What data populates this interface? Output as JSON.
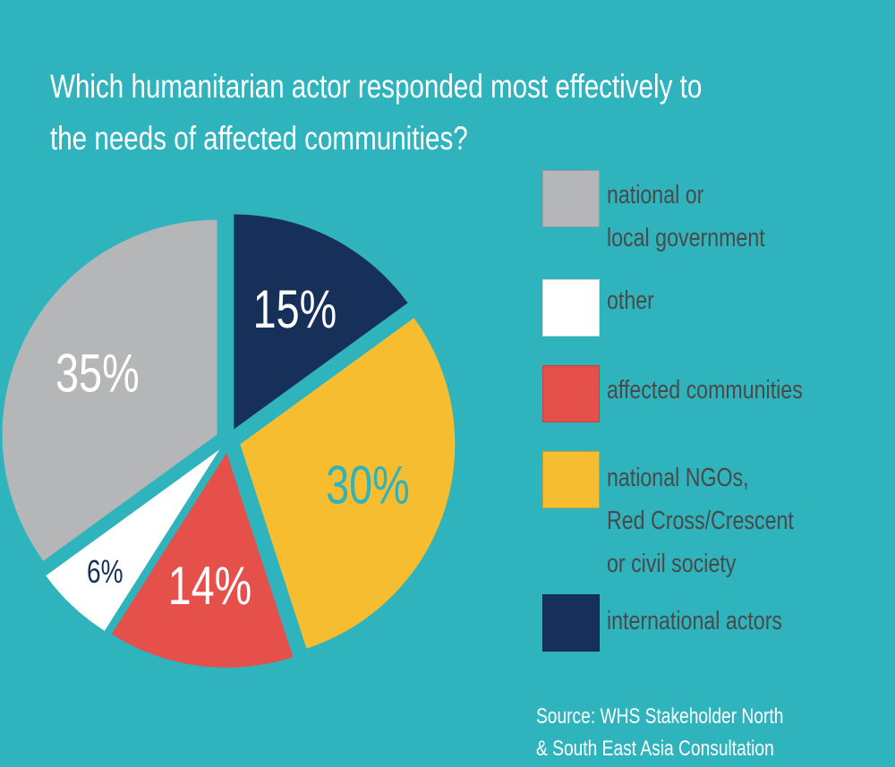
{
  "chart_data": {
    "type": "pie",
    "title_lines": [
      "Which humanitarian actor responded most effectively to",
      "the needs of affected communities?"
    ],
    "slices": [
      {
        "label": "international actors",
        "value": 15,
        "display": "15%",
        "color": "#16305a",
        "text_color": "#ffffff"
      },
      {
        "label": "national NGOs, Red Cross/Crescent or civil society",
        "value": 30,
        "display": "30%",
        "color": "#f6bd30",
        "text_color": "#2fb3bd"
      },
      {
        "label": "affected communities",
        "value": 14,
        "display": "14%",
        "color": "#e5504a",
        "text_color": "#ffffff"
      },
      {
        "label": "other",
        "value": 6,
        "display": "6%",
        "color": "#ffffff",
        "text_color": "#16305a"
      },
      {
        "label": "national or local government",
        "value": 35,
        "display": "35%",
        "color": "#b5b6b8",
        "text_color": "#ffffff"
      }
    ],
    "legend": [
      {
        "label": "national or\nlocal government",
        "color": "#b5b6b8"
      },
      {
        "label": "other",
        "color": "#ffffff"
      },
      {
        "label": "affected communities",
        "color": "#e5504a"
      },
      {
        "label": "national NGOs,\nRed Cross/Crescent\nor civil society",
        "color": "#f6bd30"
      },
      {
        "label": "international actors",
        "color": "#16305a"
      }
    ],
    "legend_placement": "right",
    "source_lines": [
      "Source: WHS Stakeholder North",
      "& South East Asia Consultation"
    ]
  }
}
